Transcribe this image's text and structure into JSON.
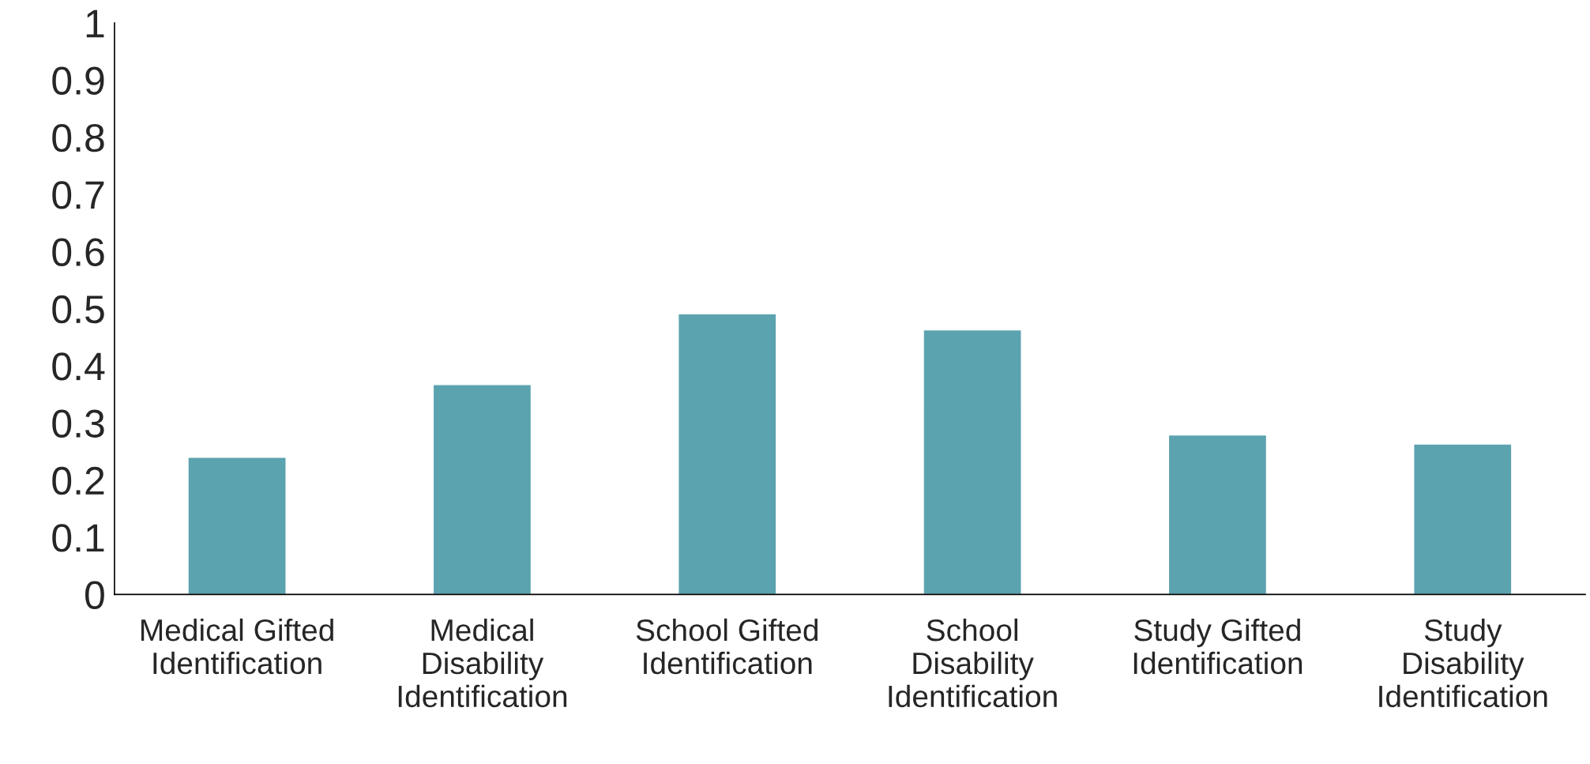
{
  "chart_data": {
    "type": "bar",
    "categories": [
      "Medical Gifted\nIdentification",
      "Medical\nDisability\nIdentification",
      "School Gifted\nIdentification",
      "School\nDisability\nIdentification",
      "Study Gifted\nIdentification",
      "Study\nDisability\nIdentification"
    ],
    "values": [
      0.24,
      0.367,
      0.491,
      0.463,
      0.279,
      0.263
    ],
    "color": "#5ba3af",
    "ylim": [
      0,
      1
    ],
    "yticks": [
      0,
      0.1,
      0.2,
      0.3,
      0.4,
      0.5,
      0.6,
      0.7,
      0.8,
      0.9,
      1
    ],
    "grid": false
  }
}
